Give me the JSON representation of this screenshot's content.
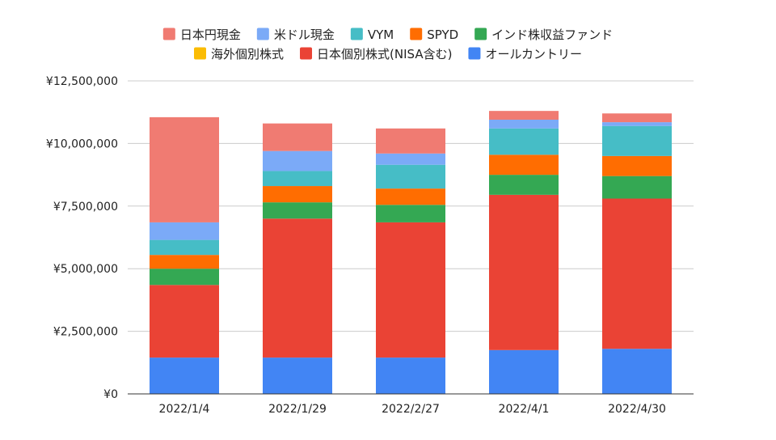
{
  "chart_data": {
    "type": "bar",
    "stacked": true,
    "title": "",
    "xlabel": "",
    "ylabel": "",
    "categories": [
      "2022/1/4",
      "2022/1/29",
      "2022/2/27",
      "2022/4/1",
      "2022/4/30"
    ],
    "ylim": [
      0,
      12500000
    ],
    "yticks": [
      0,
      2500000,
      5000000,
      7500000,
      10000000,
      12500000
    ],
    "ytick_labels": [
      "¥0",
      "¥2,500,000",
      "¥5,000,000",
      "¥7,500,000",
      "¥10,000,000",
      "¥12,500,000"
    ],
    "grid": true,
    "legend_position": "top",
    "series": [
      {
        "name": "オールカントリー",
        "color": "#4285f4",
        "values": [
          1450000,
          1450000,
          1450000,
          1750000,
          1800000
        ]
      },
      {
        "name": "日本個別株式(NISA含む)",
        "color": "#ea4335",
        "values": [
          2900000,
          5550000,
          5400000,
          6200000,
          6000000
        ]
      },
      {
        "name": "海外個別株式",
        "color": "#fbbc04",
        "values": [
          0,
          0,
          0,
          0,
          0
        ]
      },
      {
        "name": "インド株収益ファンド",
        "color": "#34a853",
        "values": [
          650000,
          650000,
          700000,
          800000,
          900000
        ]
      },
      {
        "name": "SPYD",
        "color": "#ff6d01",
        "values": [
          550000,
          650000,
          650000,
          800000,
          800000
        ]
      },
      {
        "name": "VYM",
        "color": "#46bdc6",
        "values": [
          600000,
          600000,
          950000,
          1050000,
          1200000
        ]
      },
      {
        "name": "米ドル現金",
        "color": "#7baaf7",
        "values": [
          700000,
          800000,
          450000,
          350000,
          150000
        ]
      },
      {
        "name": "日本円現金",
        "color": "#f07b72",
        "values": [
          4200000,
          1100000,
          1000000,
          350000,
          350000
        ]
      }
    ],
    "legend_rows": [
      [
        "日本円現金",
        "米ドル現金",
        "VYM",
        "SPYD",
        "インド株収益ファンド"
      ],
      [
        "海外個別株式",
        "日本個別株式(NISA含む)",
        "オールカントリー"
      ]
    ]
  }
}
